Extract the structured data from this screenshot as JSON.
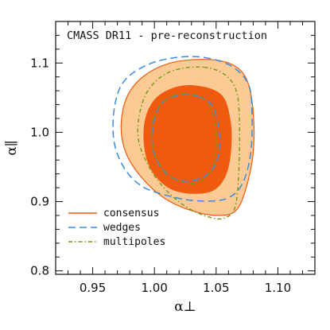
{
  "chart_data": {
    "type": "contour",
    "title": "CMASS DR11 - pre-reconstruction",
    "xlabel": "α⊥",
    "ylabel": "α∥",
    "xlim": [
      0.92,
      1.13
    ],
    "ylim": [
      0.795,
      1.16
    ],
    "xticks": [
      "0.95",
      "1.00",
      "1.05",
      "1.10"
    ],
    "xtick_values": [
      0.95,
      1.0,
      1.05,
      1.1
    ],
    "yticks": [
      "0.8",
      "0.9",
      "1.0",
      "1.1"
    ],
    "ytick_values": [
      0.8,
      0.9,
      1.0,
      1.1
    ],
    "legend_position": "bottom-left",
    "series": [
      {
        "name": "consensus",
        "style": "filled",
        "color": "#F05A0F",
        "light_color": "#FCCB95",
        "contours": [
          {
            "level": "2-sigma",
            "fill": "#FCCB95",
            "points": [
              [
                1.045,
                1.105
              ],
              [
                1.064,
                1.097
              ],
              [
                1.075,
                1.075
              ],
              [
                1.08,
                1.03
              ],
              [
                1.08,
                0.97
              ],
              [
                1.074,
                0.918
              ],
              [
                1.066,
                0.887
              ],
              [
                1.052,
                0.88
              ],
              [
                1.03,
                0.887
              ],
              [
                1.008,
                0.905
              ],
              [
                0.99,
                0.934
              ],
              [
                0.977,
                0.97
              ],
              [
                0.973,
                1.01
              ],
              [
                0.978,
                1.052
              ],
              [
                0.992,
                1.082
              ],
              [
                1.015,
                1.101
              ]
            ]
          },
          {
            "level": "1-sigma",
            "fill": "#F05A0F",
            "points": [
              [
                1.04,
                1.065
              ],
              [
                1.055,
                1.052
              ],
              [
                1.061,
                1.02
              ],
              [
                1.062,
                0.98
              ],
              [
                1.058,
                0.94
              ],
              [
                1.048,
                0.917
              ],
              [
                1.03,
                0.912
              ],
              [
                1.012,
                0.92
              ],
              [
                0.998,
                0.945
              ],
              [
                0.992,
                0.98
              ],
              [
                0.993,
                1.02
              ],
              [
                1.002,
                1.05
              ],
              [
                1.02,
                1.066
              ]
            ]
          }
        ]
      },
      {
        "name": "wedges",
        "style": "dashed",
        "color": "#3B8AE0",
        "contours": [
          {
            "level": "2-sigma",
            "points": [
              [
                1.04,
                1.108
              ],
              [
                1.062,
                1.096
              ],
              [
                1.076,
                1.07
              ],
              [
                1.079,
                1.03
              ],
              [
                1.078,
                0.97
              ],
              [
                1.071,
                0.925
              ],
              [
                1.058,
                0.904
              ],
              [
                1.035,
                0.901
              ],
              [
                1.012,
                0.908
              ],
              [
                0.99,
                0.922
              ],
              [
                0.975,
                0.95
              ],
              [
                0.967,
                0.99
              ],
              [
                0.968,
                1.04
              ],
              [
                0.976,
                1.075
              ],
              [
                0.995,
                1.098
              ],
              [
                1.018,
                1.108
              ]
            ]
          },
          {
            "level": "1-sigma",
            "points": [
              [
                1.035,
                1.052
              ],
              [
                1.047,
                1.038
              ],
              [
                1.052,
                1.005
              ],
              [
                1.052,
                0.968
              ],
              [
                1.045,
                0.942
              ],
              [
                1.03,
                0.93
              ],
              [
                1.015,
                0.934
              ],
              [
                1.005,
                0.95
              ],
              [
                0.999,
                0.975
              ],
              [
                0.999,
                1.01
              ],
              [
                1.005,
                1.04
              ],
              [
                1.018,
                1.053
              ]
            ]
          }
        ]
      },
      {
        "name": "multipoles",
        "style": "dash-dot",
        "color": "#7A9A1E",
        "contours": [
          {
            "level": "2-sigma",
            "points": [
              [
                1.04,
                1.094
              ],
              [
                1.058,
                1.082
              ],
              [
                1.067,
                1.055
              ],
              [
                1.069,
                1.0
              ],
              [
                1.068,
                0.93
              ],
              [
                1.065,
                0.89
              ],
              [
                1.058,
                0.877
              ],
              [
                1.048,
                0.876
              ],
              [
                1.03,
                0.888
              ],
              [
                1.012,
                0.912
              ],
              [
                0.997,
                0.946
              ],
              [
                0.987,
                0.99
              ],
              [
                0.989,
                1.035
              ],
              [
                0.998,
                1.068
              ],
              [
                1.015,
                1.089
              ]
            ]
          },
          {
            "level": "1-sigma",
            "points": [
              [
                1.03,
                1.055
              ],
              [
                1.043,
                1.042
              ],
              [
                1.049,
                1.01
              ],
              [
                1.05,
                0.975
              ],
              [
                1.046,
                0.945
              ],
              [
                1.035,
                0.928
              ],
              [
                1.02,
                0.93
              ],
              [
                1.008,
                0.945
              ],
              [
                1.0,
                0.97
              ],
              [
                0.998,
                1.005
              ],
              [
                1.003,
                1.035
              ],
              [
                1.014,
                1.052
              ]
            ]
          }
        ]
      }
    ]
  }
}
